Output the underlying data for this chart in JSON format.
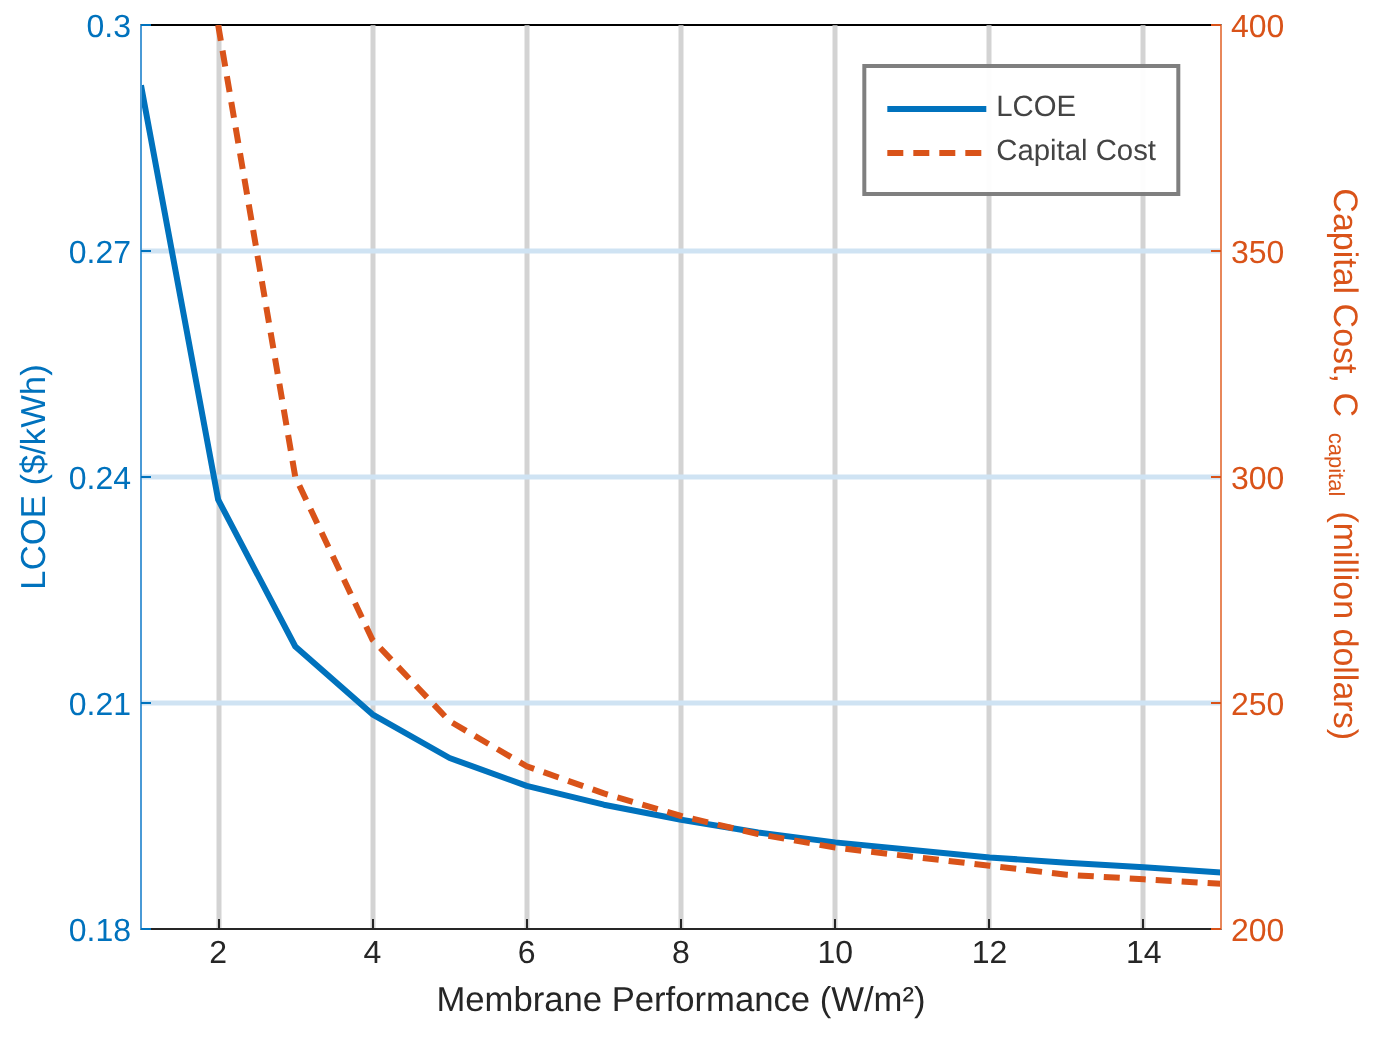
{
  "chart_data": {
    "type": "line",
    "xlabel": "Membrane Performance (W/m²)",
    "ylabel": "LCOE ($/kWh)",
    "y2label": "Capital Cost, C$_{capital}$ (million dollars)",
    "x": [
      1,
      2,
      3,
      4,
      5,
      6,
      7,
      8,
      9,
      10,
      11,
      12,
      13,
      14,
      15
    ],
    "xlim": [
      1,
      15
    ],
    "xticks": [
      2,
      4,
      6,
      8,
      10,
      12,
      14
    ],
    "ylim": [
      0.18,
      0.3
    ],
    "yticks": [
      0.18,
      0.21,
      0.24,
      0.27,
      0.3
    ],
    "y2lim": [
      200,
      400
    ],
    "y2ticks": [
      200,
      250,
      300,
      350,
      400
    ],
    "grid": true,
    "legend": "top right",
    "series": [
      {
        "name": "LCOE",
        "color": "#0072bd",
        "line_style": "solid",
        "values": [
          0.292,
          0.237,
          0.2175,
          0.2085,
          0.2027,
          0.199,
          0.1965,
          0.1945,
          0.1928,
          0.1915,
          0.1905,
          0.1895,
          0.1888,
          0.1882,
          0.1875
        ]
      },
      {
        "name": "Capital Cost",
        "color": "#d95319",
        "line_style": "dashed",
        "axis": "y2",
        "values": [
          null,
          400,
          300,
          264,
          246,
          236,
          230,
          225,
          221,
          218,
          216,
          214,
          212,
          211,
          210
        ]
      }
    ]
  }
}
